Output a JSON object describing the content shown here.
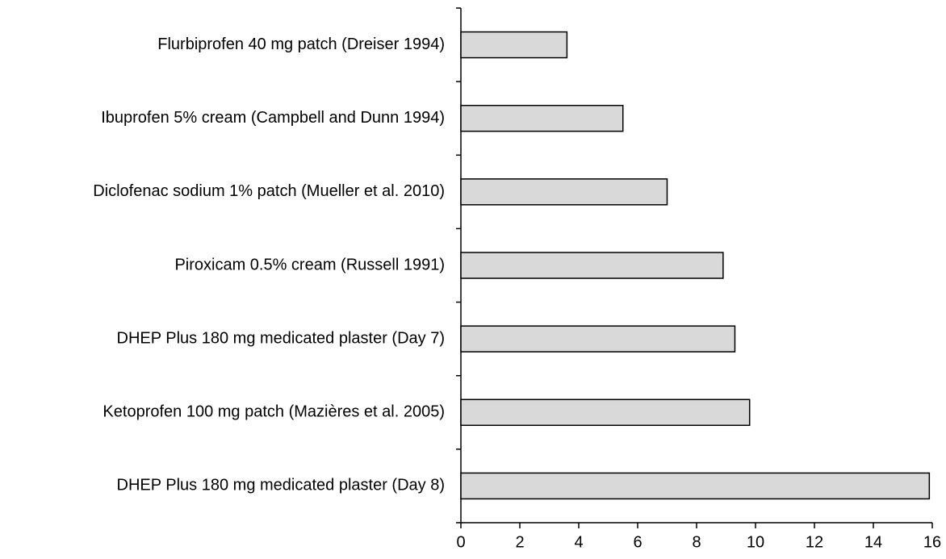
{
  "chart_data": {
    "type": "barh",
    "categories": [
      "Flurbiprofen 40 mg patch (Dreiser 1994)",
      "Ibuprofen 5% cream (Campbell and Dunn 1994)",
      "Diclofenac sodium 1% patch (Mueller et al. 2010)",
      "Piroxicam 0.5% cream (Russell 1991)",
      "DHEP Plus 180 mg medicated plaster (Day 7)",
      "Ketoprofen 100 mg patch (Mazières et al. 2005)",
      "DHEP Plus 180 mg medicated plaster (Day 8)"
    ],
    "values": [
      3.6,
      5.5,
      7.0,
      8.9,
      9.3,
      9.8,
      15.9
    ],
    "color": "#d9d9d9",
    "xlim": [
      0,
      16
    ],
    "xticks": [
      0,
      2,
      4,
      6,
      8,
      10,
      12,
      14,
      16
    ],
    "grid": false
  }
}
